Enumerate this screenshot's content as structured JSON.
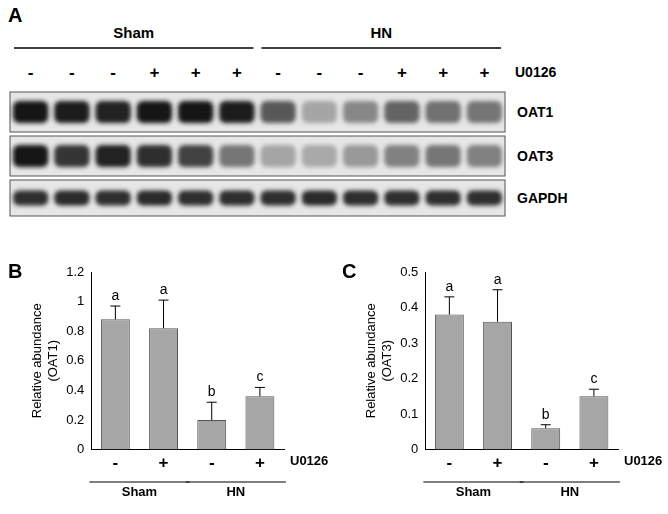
{
  "blot": {
    "panel_label": "A",
    "lane_groups": [
      "Sham",
      "Sham",
      "Sham",
      "Sham",
      "Sham",
      "Sham",
      "HN",
      "HN",
      "HN",
      "HN",
      "HN",
      "HN"
    ],
    "treatment_label": "U0126",
    "treatment_signs": [
      "-",
      "-",
      "-",
      "+",
      "+",
      "+",
      "-",
      "-",
      "-",
      "+",
      "+",
      "+"
    ],
    "rows": [
      {
        "label": "OAT1",
        "intensity": [
          0.92,
          0.88,
          0.86,
          0.9,
          0.92,
          0.88,
          0.62,
          0.3,
          0.42,
          0.58,
          0.52,
          0.5
        ]
      },
      {
        "label": "OAT3",
        "intensity": [
          0.9,
          0.78,
          0.85,
          0.8,
          0.72,
          0.5,
          0.3,
          0.28,
          0.35,
          0.45,
          0.5,
          0.45
        ]
      },
      {
        "label": "GAPDH",
        "intensity": [
          0.8,
          0.82,
          0.8,
          0.82,
          0.8,
          0.8,
          0.8,
          0.82,
          0.8,
          0.8,
          0.8,
          0.8
        ]
      }
    ]
  },
  "chart_data": [
    {
      "type": "bar",
      "panel_label": "B",
      "categories": [
        "-",
        "+",
        "-",
        "+"
      ],
      "category_groups": [
        "Sham",
        "Sham",
        "HN",
        "HN"
      ],
      "x_label": "U0126",
      "y_label": [
        "Relative abundance",
        "(OAT1)"
      ],
      "values": [
        0.88,
        0.82,
        0.2,
        0.36
      ],
      "errors": [
        0.09,
        0.19,
        0.12,
        0.06
      ],
      "letters": [
        "a",
        "a",
        "b",
        "c"
      ],
      "color": "#a6a6a6",
      "ylim": [
        0,
        1.2
      ],
      "yticks": [
        0,
        0.2,
        0.4,
        0.6,
        0.8,
        1,
        1.2
      ],
      "grid": false
    },
    {
      "type": "bar",
      "panel_label": "C",
      "categories": [
        "-",
        "+",
        "-",
        "+"
      ],
      "category_groups": [
        "Sham",
        "Sham",
        "HN",
        "HN"
      ],
      "x_label": "U0126",
      "y_label": [
        "Relative abundance",
        "(OAT3)"
      ],
      "values": [
        0.38,
        0.36,
        0.06,
        0.15
      ],
      "errors": [
        0.05,
        0.09,
        0.01,
        0.02
      ],
      "letters": [
        "a",
        "a",
        "b",
        "c"
      ],
      "color": "#a6a6a6",
      "ylim": [
        0,
        0.5
      ],
      "yticks": [
        0,
        0.1,
        0.2,
        0.3,
        0.4,
        0.5
      ],
      "grid": false
    }
  ]
}
